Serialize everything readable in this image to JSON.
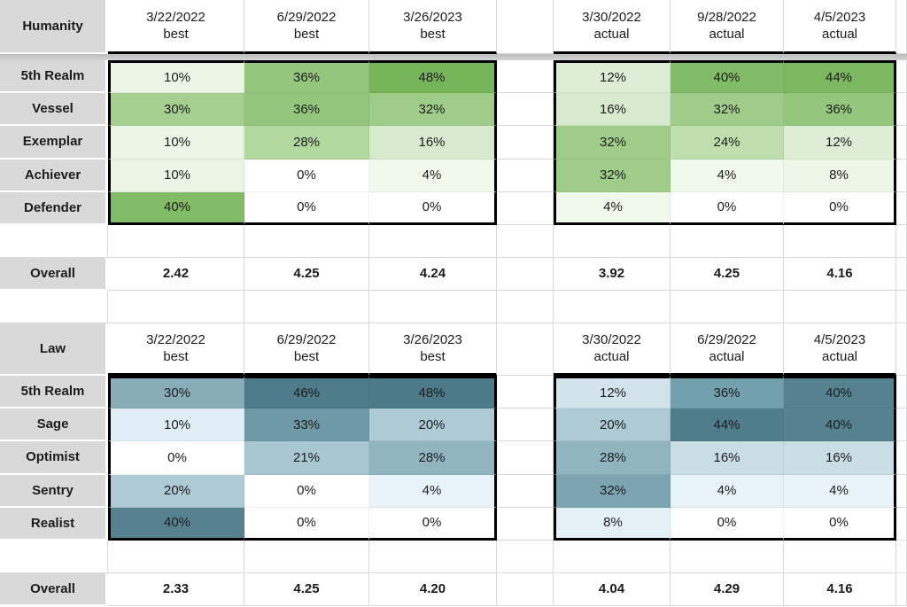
{
  "app": {
    "kind": "spreadsheet-heatmap-view"
  },
  "colors": {
    "label_background": "#D9D9D9",
    "gridline": "#D8D8D8",
    "box_border": "#000000",
    "frozen_divider": "#C9C9C9",
    "text": "#1C1C1C"
  },
  "tables": [
    {
      "title": "Humanity",
      "best_headers": [
        {
          "date": "3/22/2022",
          "tag": "best"
        },
        {
          "date": "6/29/2022",
          "tag": "best"
        },
        {
          "date": "3/26/2023",
          "tag": "best"
        }
      ],
      "actual_headers": [
        {
          "date": "3/30/2022",
          "tag": "actual"
        },
        {
          "date": "9/28/2022",
          "tag": "actual"
        },
        {
          "date": "4/5/2023",
          "tag": "actual"
        }
      ],
      "rows": [
        {
          "label": "5th Realm",
          "best": [
            "10%",
            "36%",
            "48%"
          ],
          "actual": [
            "12%",
            "40%",
            "44%"
          ]
        },
        {
          "label": "Vessel",
          "best": [
            "30%",
            "36%",
            "32%"
          ],
          "actual": [
            "16%",
            "32%",
            "36%"
          ]
        },
        {
          "label": "Exemplar",
          "best": [
            "10%",
            "28%",
            "16%"
          ],
          "actual": [
            "32%",
            "24%",
            "12%"
          ]
        },
        {
          "label": "Achiever",
          "best": [
            "10%",
            "0%",
            "4%"
          ],
          "actual": [
            "32%",
            "4%",
            "8%"
          ]
        },
        {
          "label": "Defender",
          "best": [
            "40%",
            "0%",
            "0%"
          ],
          "actual": [
            "4%",
            "0%",
            "0%"
          ]
        }
      ],
      "overall": {
        "label": "Overall",
        "best": [
          "2.42",
          "4.25",
          "4.24"
        ],
        "actual": [
          "3.92",
          "4.25",
          "4.16"
        ]
      },
      "color_scale": {
        "0": "#FFFFFF",
        "4": "#F1F8EC",
        "8": "#EDF6E7",
        "10": "#EBF5E5",
        "12": "#DEEDD5",
        "16": "#D8EACE",
        "24": "#BFDEAE",
        "28": "#B2D79F",
        "30": "#A5D08F",
        "32": "#9FCD89",
        "36": "#94C67D",
        "40": "#83BC66",
        "44": "#7CB85F",
        "48": "#77B55A"
      }
    },
    {
      "title": "Law",
      "best_headers": [
        {
          "date": "3/22/2022",
          "tag": "best"
        },
        {
          "date": "6/29/2022",
          "tag": "best"
        },
        {
          "date": "3/26/2023",
          "tag": "best"
        }
      ],
      "actual_headers": [
        {
          "date": "3/30/2022",
          "tag": "actual"
        },
        {
          "date": "6/29/2022",
          "tag": "actual"
        },
        {
          "date": "4/5/2023",
          "tag": "actual"
        }
      ],
      "rows": [
        {
          "label": "5th Realm",
          "best": [
            "30%",
            "46%",
            "48%"
          ],
          "actual": [
            "12%",
            "36%",
            "40%"
          ]
        },
        {
          "label": "Sage",
          "best": [
            "10%",
            "33%",
            "20%"
          ],
          "actual": [
            "20%",
            "44%",
            "40%"
          ]
        },
        {
          "label": "Optimist",
          "best": [
            "0%",
            "21%",
            "28%"
          ],
          "actual": [
            "28%",
            "16%",
            "16%"
          ]
        },
        {
          "label": "Sentry",
          "best": [
            "20%",
            "0%",
            "4%"
          ],
          "actual": [
            "32%",
            "4%",
            "4%"
          ]
        },
        {
          "label": "Realist",
          "best": [
            "40%",
            "0%",
            "0%"
          ],
          "actual": [
            "8%",
            "0%",
            "0%"
          ]
        }
      ],
      "overall": {
        "label": "Overall",
        "best": [
          "2.33",
          "4.25",
          "4.20"
        ],
        "actual": [
          "4.04",
          "4.29",
          "4.16"
        ]
      },
      "color_scale": {
        "0": "#FFFFFF",
        "4": "#E7F3F9",
        "8": "#E3F1F7",
        "10": "#DFEFF5",
        "12": "#D3E3EB",
        "16": "#C9DDE5",
        "20": "#AECBD5",
        "21": "#A8C7D1",
        "28": "#90B5C1",
        "30": "#88ACB8",
        "32": "#7CA4B1",
        "33": "#7099A7",
        "36": "#73A0AD",
        "40": "#56828F",
        "44": "#4F7D8B",
        "46": "#4D7B8A",
        "48": "#4C7A89"
      }
    }
  ]
}
